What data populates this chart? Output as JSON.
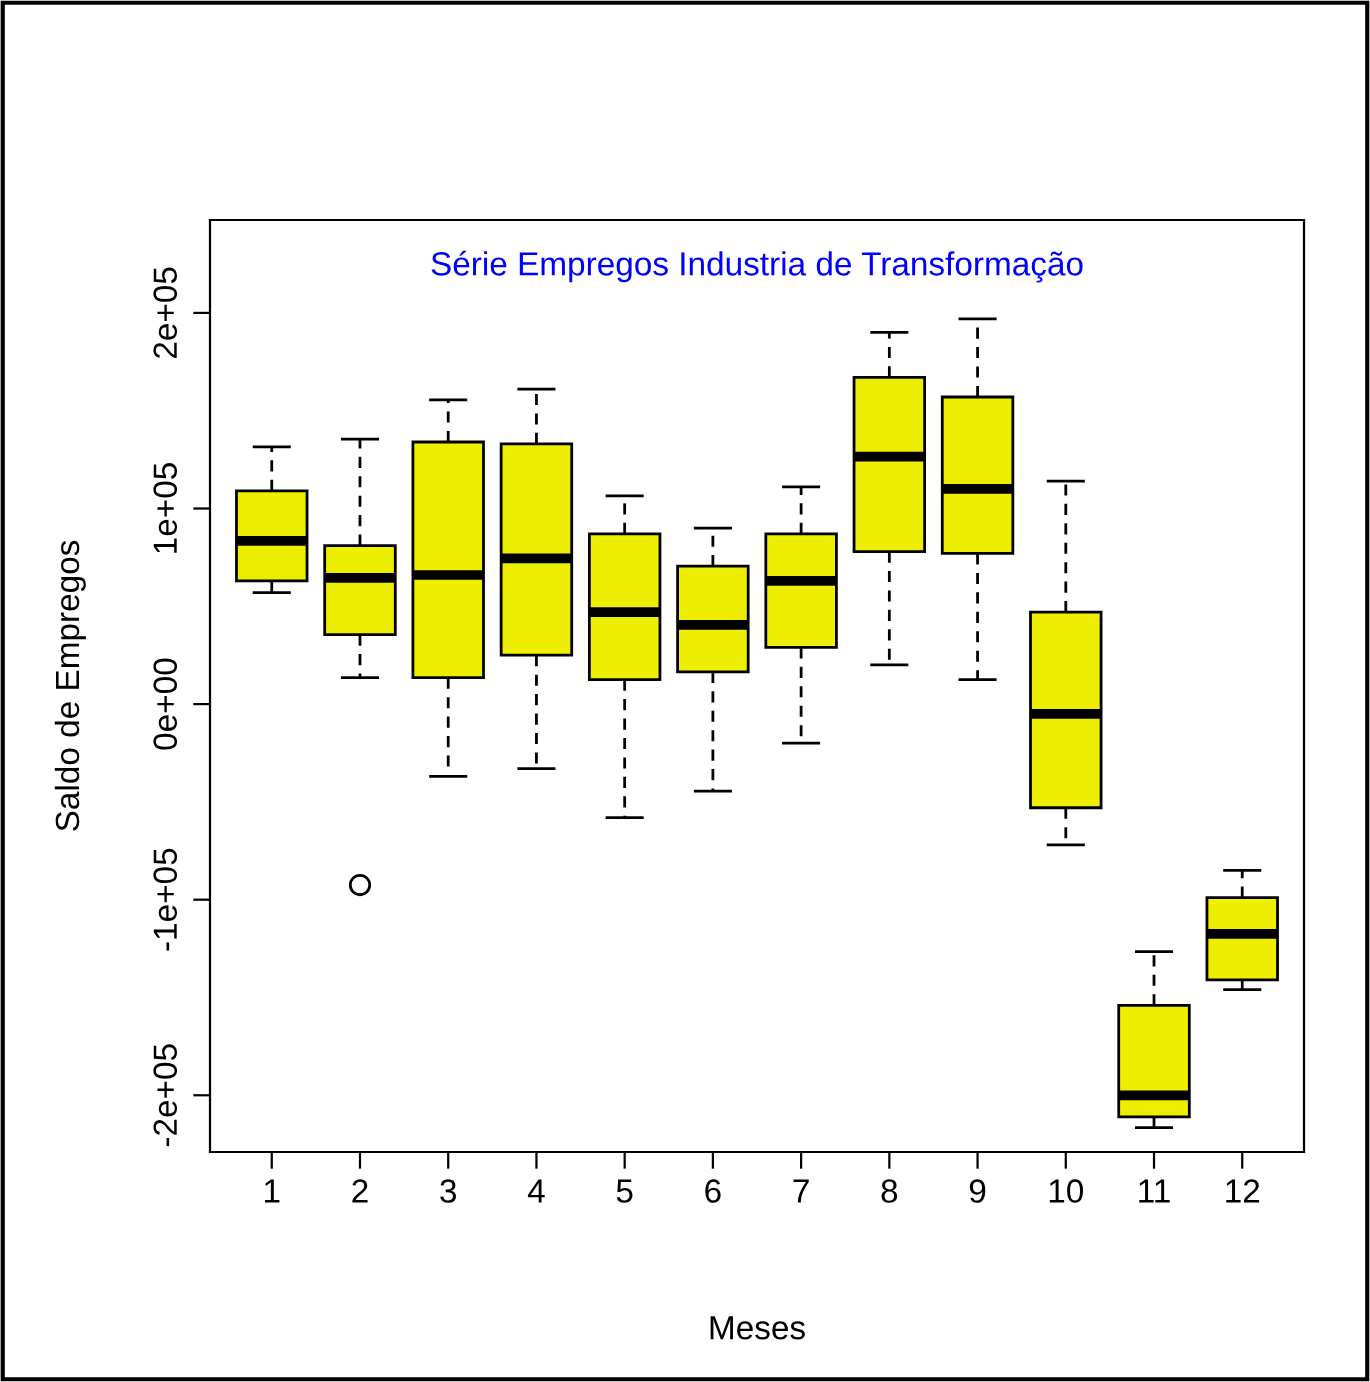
{
  "chart_data": {
    "type": "box",
    "title": "Série Empregos Industria de Transformação",
    "xlabel": "Meses",
    "ylabel": "Saldo de Empregos",
    "categories": [
      "1",
      "2",
      "3",
      "4",
      "5",
      "6",
      "7",
      "8",
      "9",
      "10",
      "11",
      "12"
    ],
    "series": [
      {
        "color": "#eeee00",
        "boxes": [
          {
            "low": 57000,
            "q1": 63000,
            "median": 83500,
            "q3": 109000,
            "high": 131500
          },
          {
            "low": 13500,
            "q1": 35500,
            "median": 64500,
            "q3": 81000,
            "high": 135500,
            "outliers": [
              -92500
            ]
          },
          {
            "low": -37000,
            "q1": 13500,
            "median": 66000,
            "q3": 134000,
            "high": 155500
          },
          {
            "low": -33000,
            "q1": 25000,
            "median": 74500,
            "q3": 133000,
            "high": 161000
          },
          {
            "low": -58000,
            "q1": 12500,
            "median": 47000,
            "q3": 87000,
            "high": 106500
          },
          {
            "low": -44500,
            "q1": 16500,
            "median": 40500,
            "q3": 70500,
            "high": 90000
          },
          {
            "low": -20000,
            "q1": 29000,
            "median": 63000,
            "q3": 87000,
            "high": 111000
          },
          {
            "low": 20000,
            "q1": 78000,
            "median": 126500,
            "q3": 167000,
            "high": 190000
          },
          {
            "low": 12500,
            "q1": 77000,
            "median": 110000,
            "q3": 157000,
            "high": 197000
          },
          {
            "low": -72000,
            "q1": -53000,
            "median": -5000,
            "q3": 47000,
            "high": 114000
          },
          {
            "low": -216500,
            "q1": -211000,
            "median": -200000,
            "q3": -154000,
            "high": -126500
          },
          {
            "low": -146000,
            "q1": -141000,
            "median": -117500,
            "q3": -99000,
            "high": -85000
          }
        ]
      }
    ],
    "ylim": [
      -229000,
      247500
    ],
    "yticks": [
      {
        "value": -200000,
        "label": "-2e+05"
      },
      {
        "value": -100000,
        "label": "-1e+05"
      },
      {
        "value": 0,
        "label": "0e+00"
      },
      {
        "value": 100000,
        "label": "1e+05"
      },
      {
        "value": 200000,
        "label": "2e+05"
      }
    ],
    "grid": false,
    "legend": false
  }
}
